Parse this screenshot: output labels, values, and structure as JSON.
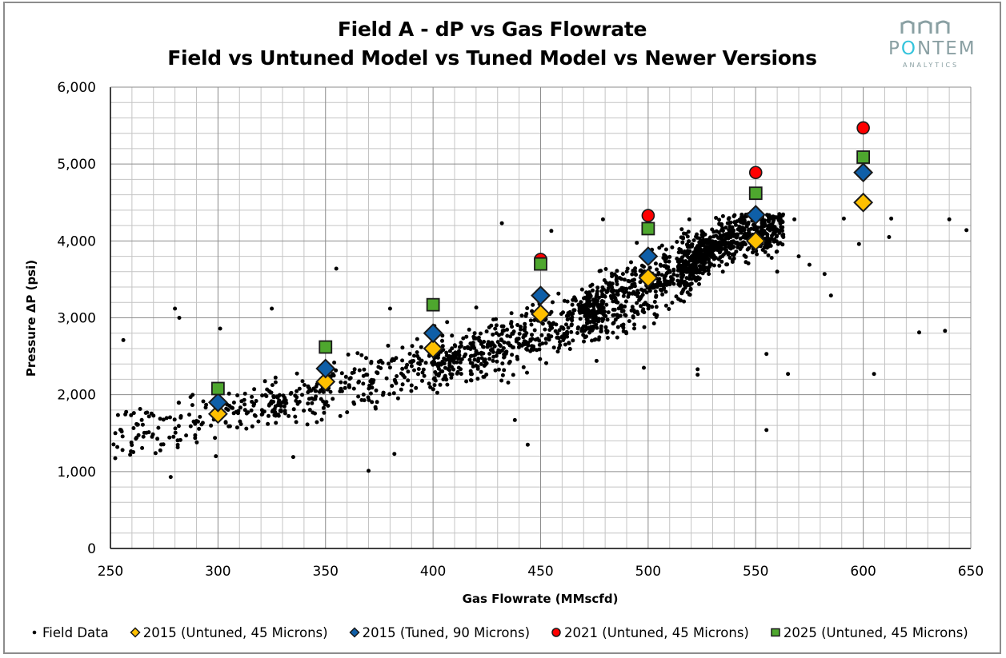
{
  "header": {
    "title_line1": "Field A - dP vs Gas Flowrate",
    "title_line2": "Field vs Untuned Model vs Tuned Model vs Newer Versions"
  },
  "logo": {
    "name": "PONTEM",
    "subtitle": "ANALYTICS",
    "color": "#8aa0a3",
    "accent": "#35c4dc"
  },
  "axes": {
    "x_title": "Gas Flowrate (MMscfd)",
    "y_title": "Pressure ΔP (psi)",
    "x_ticks": [
      "250",
      "300",
      "350",
      "400",
      "450",
      "500",
      "550",
      "600",
      "650"
    ],
    "y_ticks": [
      "0",
      "1,000",
      "2,000",
      "3,000",
      "4,000",
      "5,000",
      "6,000"
    ]
  },
  "legend": {
    "items": [
      {
        "label": "Field Data"
      },
      {
        "label": "2015 (Untuned, 45 Microns)"
      },
      {
        "label": "2015 (Tuned, 90 Microns)"
      },
      {
        "label": "2021 (Untuned, 45 Microns)"
      },
      {
        "label": "2025 (Untuned, 45 Microns)"
      }
    ]
  },
  "chart_data": {
    "type": "scatter",
    "title": "Field A - dP vs Gas Flowrate / Field vs Untuned Model vs Tuned Model vs Newer Versions",
    "xlabel": "Gas Flowrate (MMscfd)",
    "ylabel": "Pressure ΔP (psi)",
    "xlim": [
      250,
      650
    ],
    "ylim": [
      0,
      6000
    ],
    "x_major_step": 50,
    "x_minor_step": 10,
    "y_major_step": 1000,
    "y_minor_step": 200,
    "grid": true,
    "legend_position": "bottom",
    "series": [
      {
        "name": "2015 (Untuned, 45 Microns)",
        "marker": "diamond",
        "color": "#ffc000",
        "points": [
          [
            300,
            1750
          ],
          [
            350,
            2170
          ],
          [
            400,
            2600
          ],
          [
            450,
            3050
          ],
          [
            500,
            3520
          ],
          [
            550,
            4000
          ],
          [
            600,
            4500
          ]
        ]
      },
      {
        "name": "2015 (Tuned, 90 Microns)",
        "marker": "diamond",
        "color": "#0f5fa8",
        "points": [
          [
            300,
            1900
          ],
          [
            350,
            2340
          ],
          [
            400,
            2800
          ],
          [
            450,
            3290
          ],
          [
            500,
            3800
          ],
          [
            550,
            4340
          ],
          [
            600,
            4890
          ]
        ]
      },
      {
        "name": "2021 (Untuned, 45 Microns)",
        "marker": "circle",
        "color": "#ff0000",
        "points": [
          [
            450,
            3760
          ],
          [
            500,
            4330
          ],
          [
            550,
            4890
          ],
          [
            600,
            5470
          ]
        ]
      },
      {
        "name": "2025 (Untuned, 45 Microns)",
        "marker": "square",
        "color": "#4ea72e",
        "points": [
          [
            300,
            2080
          ],
          [
            350,
            2620
          ],
          [
            400,
            3170
          ],
          [
            450,
            3700
          ],
          [
            500,
            4160
          ],
          [
            550,
            4620
          ],
          [
            600,
            5090
          ]
        ]
      },
      {
        "name": "Field Data",
        "marker": "dot",
        "color": "#000000",
        "description": "~2000 field measurements; dense trend rising from ~1,500 psi at 250 MMscfd to ~4,200 psi at 540-560 MMscfd, densest cluster 520-560 MMscfd at 3,800-4,300 psi",
        "trend": {
          "x": [
            250,
            300,
            350,
            400,
            450,
            500,
            540,
            560
          ],
          "y": [
            1450,
            1750,
            2050,
            2400,
            2800,
            3400,
            4050,
            4150
          ]
        },
        "count": 2000,
        "outliers": [
          [
            278,
            930
          ],
          [
            370,
            1010
          ],
          [
            382,
            1230
          ],
          [
            335,
            1190
          ],
          [
            355,
            3640
          ],
          [
            380,
            3120
          ],
          [
            325,
            3120
          ],
          [
            280,
            3120
          ],
          [
            282,
            3000
          ],
          [
            256,
            2710
          ],
          [
            301,
            2860
          ],
          [
            299,
            1200
          ],
          [
            271,
            1240
          ],
          [
            444,
            1350
          ],
          [
            438,
            1670
          ],
          [
            555,
            1540
          ],
          [
            555,
            2530
          ],
          [
            523,
            2260
          ],
          [
            523,
            2330
          ],
          [
            565,
            2270
          ],
          [
            605,
            2270
          ],
          [
            626,
            2810
          ],
          [
            638,
            2830
          ],
          [
            648,
            4140
          ],
          [
            640,
            4280
          ],
          [
            613,
            4290
          ],
          [
            612,
            4050
          ],
          [
            591,
            4290
          ],
          [
            598,
            3960
          ],
          [
            582,
            3570
          ],
          [
            585,
            3290
          ],
          [
            432,
            4230
          ],
          [
            479,
            4280
          ],
          [
            455,
            4130
          ],
          [
            498,
            2350
          ],
          [
            476,
            2440
          ],
          [
            560,
            3600
          ],
          [
            570,
            3800
          ],
          [
            575,
            3690
          ],
          [
            568,
            4280
          ]
        ]
      }
    ]
  }
}
